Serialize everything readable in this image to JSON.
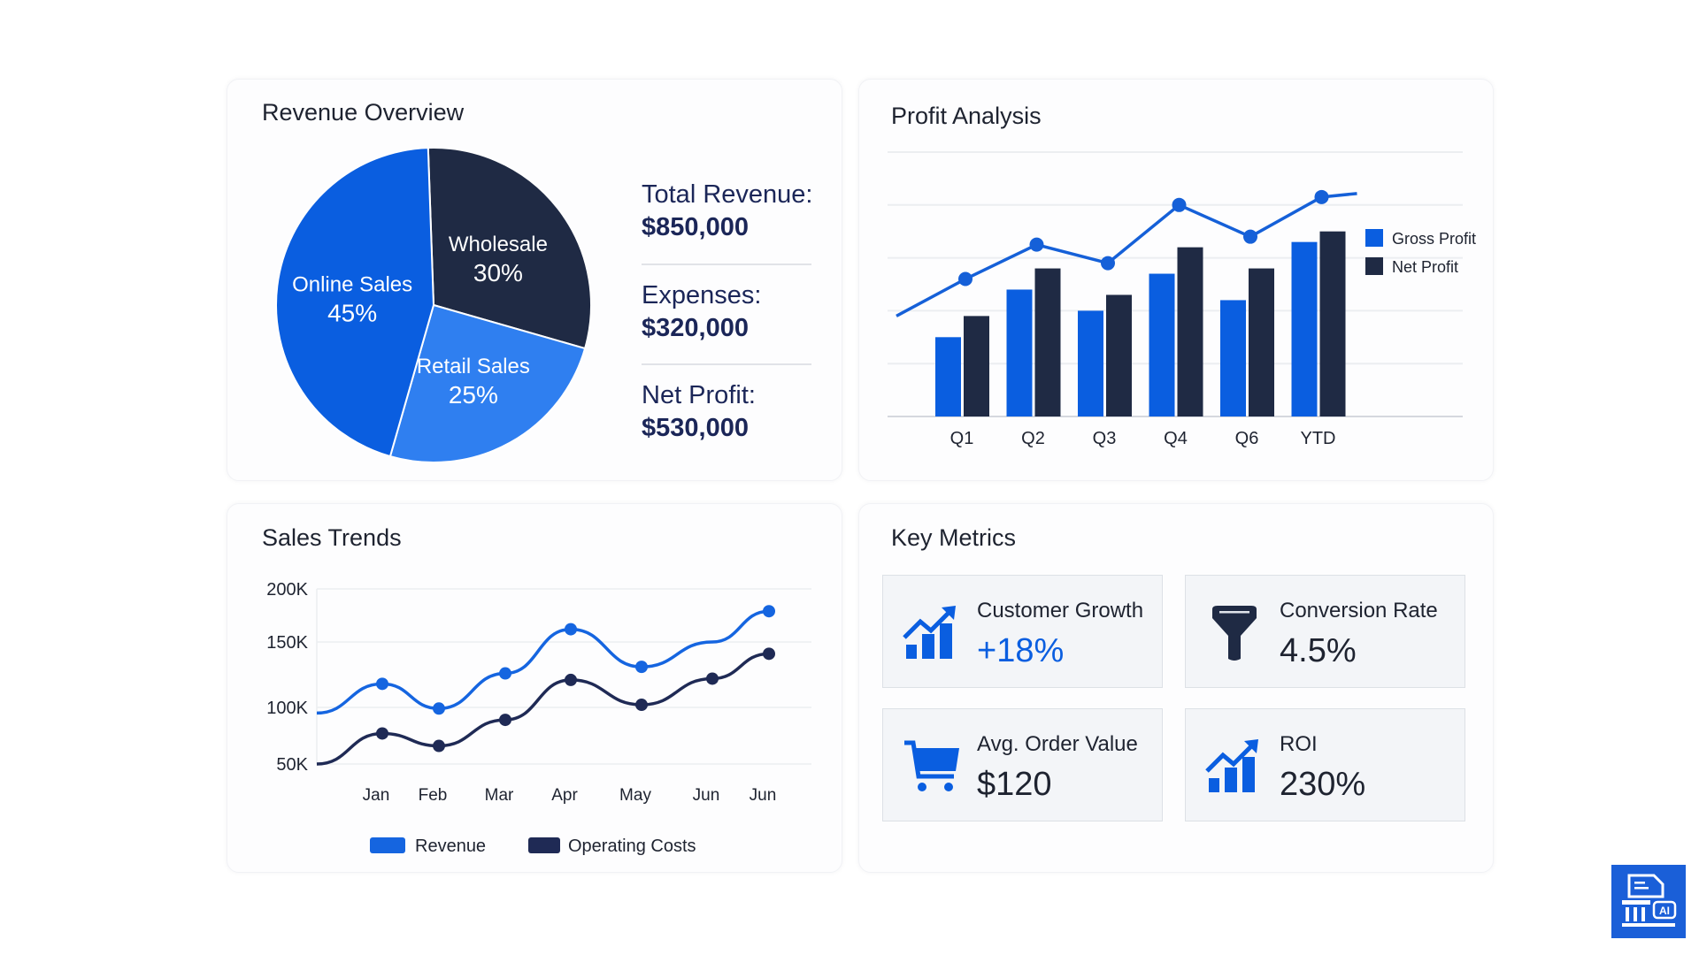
{
  "colors": {
    "primary_blue": "#0a5ee0",
    "light_blue": "#2f7ff0",
    "navy": "#1f2a44",
    "text": "#1b2658"
  },
  "revenue_overview": {
    "title": "Revenue Overview",
    "stats": [
      {
        "label": "Total Revenue:",
        "value": "$850,000"
      },
      {
        "label": "Expenses:",
        "value": "$320,000"
      },
      {
        "label": "Net Profit:",
        "value": "$530,000"
      }
    ]
  },
  "profit_analysis": {
    "title": "Profit Analysis"
  },
  "sales_trends": {
    "title": "Sales Trends"
  },
  "key_metrics": {
    "title": "Key Metrics",
    "items": [
      {
        "label": "Customer Growth",
        "value": "+18%",
        "icon": "growth-chart-icon",
        "value_color": "#0a5ee0"
      },
      {
        "label": "Conversion Rate",
        "value": "4.5%",
        "icon": "funnel-icon",
        "value_color": "#1e2330"
      },
      {
        "label": "Avg. Order Value",
        "value": "$120",
        "icon": "shopping-cart-icon",
        "value_color": "#1e2330"
      },
      {
        "label": "ROI",
        "value": "230%",
        "icon": "growth-chart-icon",
        "value_color": "#1e2330"
      }
    ]
  },
  "badge": {
    "icon": "document-pillar-ai-icon",
    "logo_text": "AI"
  },
  "chart_data": [
    {
      "type": "pie",
      "title": "Revenue Overview",
      "slices": [
        {
          "label": "Wholesale",
          "value": 30,
          "display": "30%",
          "color": "#1f2a44"
        },
        {
          "label": "Retail Sales",
          "value": 25,
          "display": "25%",
          "color": "#2f7ff0"
        },
        {
          "label": "Online Sales",
          "value": 45,
          "display": "45%",
          "color": "#0a5ee0"
        }
      ]
    },
    {
      "type": "bar",
      "title": "Profit Analysis",
      "categories": [
        "Q1",
        "Q2",
        "Q3",
        "Q4",
        "Q6",
        "YTD"
      ],
      "ylim": [
        0,
        5
      ],
      "grid": true,
      "legend": "right",
      "series": [
        {
          "name": "Gross Profit",
          "color": "#0a5ee0",
          "values": [
            1.5,
            2.4,
            2.0,
            2.7,
            2.2,
            3.3
          ]
        },
        {
          "name": "Net Profit",
          "color": "#1f2a44",
          "values": [
            1.9,
            2.8,
            2.3,
            3.2,
            2.8,
            3.5
          ]
        }
      ],
      "trend_line": {
        "color": "#1560d8",
        "values": [
          2.6,
          3.25,
          2.9,
          4.0,
          3.4,
          4.15
        ]
      }
    },
    {
      "type": "line",
      "title": "Sales Trends",
      "x": [
        "Jan",
        "Feb",
        "Mar",
        "Apr",
        "May",
        "Jun",
        "Jun"
      ],
      "y_ticks": [
        "200K",
        "150K",
        "100K",
        "50K"
      ],
      "y_tick_values": [
        200000,
        150000,
        100000,
        50000
      ],
      "grid": true,
      "legend": "bottom",
      "series": [
        {
          "name": "Revenue",
          "color": "#1565e0",
          "start": 95000,
          "values": [
            118000,
            99000,
            126000,
            162000,
            131000,
            150000,
            179000
          ],
          "markers": [
            true,
            true,
            true,
            true,
            true,
            false,
            true
          ]
        },
        {
          "name": "Operating Costs",
          "color": "#1f2a55",
          "start": 50000,
          "values": [
            77000,
            66000,
            89000,
            121000,
            102000,
            122000,
            141000
          ],
          "markers": [
            true,
            true,
            true,
            true,
            true,
            true,
            true
          ]
        }
      ]
    }
  ]
}
